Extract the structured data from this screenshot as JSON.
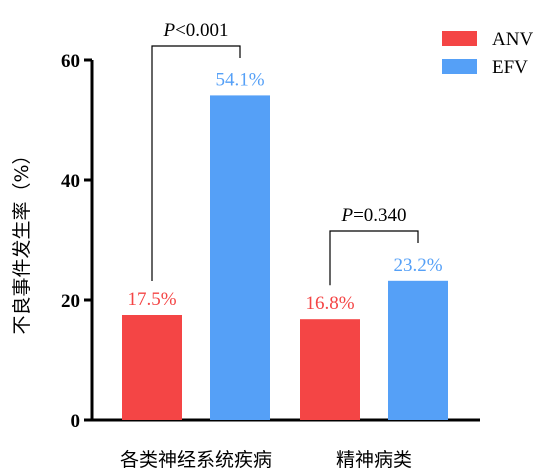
{
  "chart_data": {
    "type": "bar",
    "title": "",
    "xlabel": "",
    "ylabel": "不良事件发生率（%）",
    "ylim": [
      0,
      60
    ],
    "yticks": [
      "0",
      "20",
      "40",
      "60"
    ],
    "categories": [
      "各类神经系统疾病",
      "精神病类"
    ],
    "series": [
      {
        "name": "ANV",
        "color": "#F44545",
        "values": [
          17.5,
          16.8
        ],
        "labels": [
          "17.5%",
          "16.8%"
        ]
      },
      {
        "name": "EFV",
        "color": "#55A0F7",
        "values": [
          54.1,
          23.2
        ],
        "labels": [
          "54.1%",
          "23.2%"
        ]
      }
    ],
    "legend_position": "top-right",
    "annotations": [
      {
        "category": "各类神经系统疾病",
        "p_symbol": "P",
        "p_text": "<0.001"
      },
      {
        "category": "精神病类",
        "p_symbol": "P",
        "p_text": "=0.340"
      }
    ]
  }
}
